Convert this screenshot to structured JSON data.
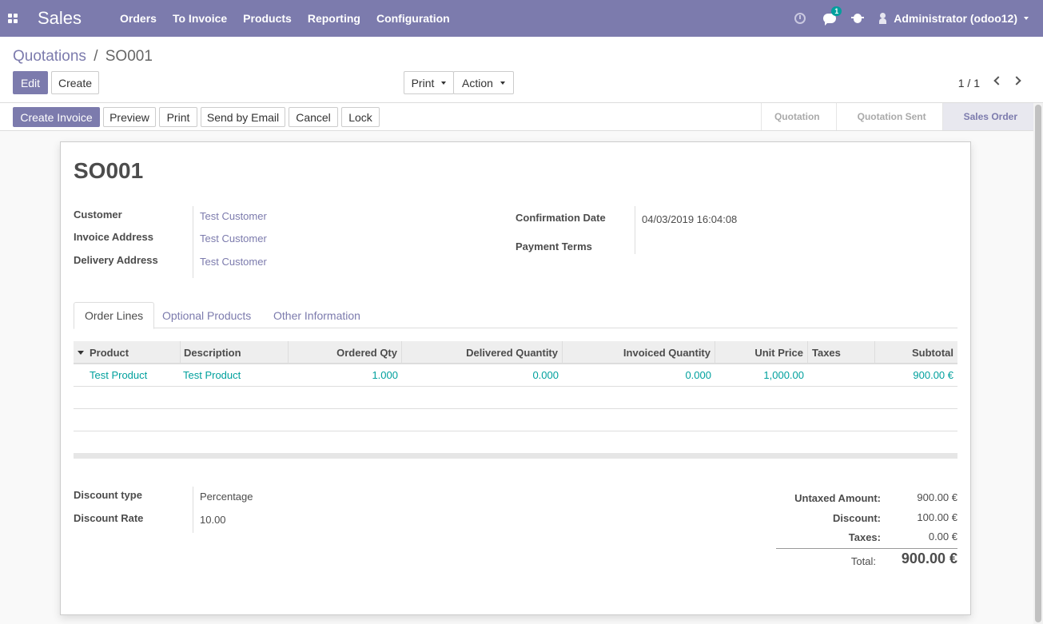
{
  "navbar": {
    "brand": "Sales",
    "menu": [
      "Orders",
      "To Invoice",
      "Products",
      "Reporting",
      "Configuration"
    ],
    "messages_badge": "1",
    "user": "Administrator (odoo12)"
  },
  "breadcrumb": {
    "parent": "Quotations",
    "separator": "/",
    "current": "SO001"
  },
  "control": {
    "edit_label": "Edit",
    "create_label": "Create",
    "print_label": "Print",
    "action_label": "Action",
    "pager": "1 / 1"
  },
  "statusbar": {
    "buttons": [
      "Create Invoice",
      "Preview",
      "Print",
      "Send by Email",
      "Cancel",
      "Lock"
    ],
    "stages": [
      "Quotation",
      "Quotation Sent",
      "Sales Order"
    ],
    "active_stage": "Sales Order"
  },
  "form": {
    "title": "SO001",
    "customer_label": "Customer",
    "customer": "Test Customer",
    "invoice_address_label": "Invoice Address",
    "invoice_address": "Test Customer",
    "delivery_address_label": "Delivery Address",
    "delivery_address": "Test Customer",
    "confirmation_date_label": "Confirmation Date",
    "confirmation_date": "04/03/2019 16:04:08",
    "payment_terms_label": "Payment Terms",
    "payment_terms": ""
  },
  "tabs": [
    "Order Lines",
    "Optional Products",
    "Other Information"
  ],
  "order_lines": {
    "columns": [
      "Product",
      "Description",
      "Ordered Qty",
      "Delivered Quantity",
      "Invoiced Quantity",
      "Unit Price",
      "Taxes",
      "Subtotal"
    ],
    "rows": [
      {
        "product": "Test Product",
        "description": "Test Product",
        "ordered_qty": "1.000",
        "delivered_qty": "0.000",
        "invoiced_qty": "0.000",
        "unit_price": "1,000.00",
        "taxes": "",
        "subtotal": "900.00 €"
      }
    ]
  },
  "discount": {
    "type_label": "Discount type",
    "type": "Percentage",
    "rate_label": "Discount Rate",
    "rate": "10.00"
  },
  "totals": {
    "untaxed_label": "Untaxed Amount:",
    "untaxed": "900.00 €",
    "discount_label": "Discount:",
    "discount": "100.00 €",
    "taxes_label": "Taxes:",
    "taxes": "0.00 €",
    "total_label": "Total:",
    "total": "900.00 €"
  },
  "colors": {
    "brand": "#7c7bad",
    "link_teal": "#00a09d"
  }
}
